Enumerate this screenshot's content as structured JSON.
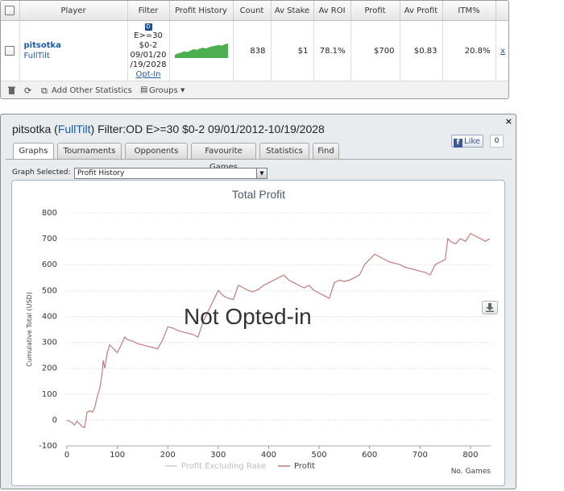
{
  "table": {
    "headers": {
      "player": "Player",
      "filter": "Filter",
      "profit_history": "Profit History",
      "count": "Count",
      "av_stake": "Av Stake",
      "av_roi": "Av ROI",
      "profit": "Profit",
      "av_profit": "Av Profit",
      "itm": "ITM%"
    },
    "row": {
      "player_name": "pitsotka",
      "site": "FullTilt",
      "filter_icon": "D",
      "filter_lines": [
        "E>=30",
        "$0-2",
        "09/01/20",
        "/19/2028"
      ],
      "opt_in": "Opt-In",
      "count": "838",
      "av_stake": "$1",
      "av_roi": "78.1%",
      "profit": "$700",
      "av_profit": "$0.83",
      "itm": "20.8%",
      "remove": "x"
    },
    "toolbar": {
      "add_stats": "Add Other Statistics",
      "groups": "Groups"
    }
  },
  "graph_panel": {
    "close": "×",
    "title_player": "pitsotka (",
    "title_site": "FullTilt",
    "title_rest": ") Filter:OD E>=30 $0-2 09/01/2012-10/19/2028",
    "facebook": {
      "like": "Like",
      "count": "0"
    },
    "tabs": [
      "Graphs",
      "Tournaments",
      "Opponents",
      "Favourite Games",
      "Statistics",
      "Find"
    ],
    "graph_selected_label": "Graph Selected:",
    "graph_selected_value": "Profit History",
    "overlay_text": "Not Opted-in"
  },
  "colors": {
    "profit_line": "#c47a7a",
    "rake_line": "#cccccc",
    "sparkline": "#4caf50",
    "link": "#1a5aa8"
  },
  "chart_data": {
    "type": "line",
    "title": "Total Profit",
    "xlabel": "No. Games",
    "ylabel": "Cumulative Total (USD)",
    "xlim": [
      0,
      840
    ],
    "ylim": [
      -100,
      800
    ],
    "x_ticks": [
      0,
      100,
      200,
      300,
      400,
      500,
      600,
      700,
      800
    ],
    "y_ticks": [
      -100,
      0,
      100,
      200,
      300,
      400,
      500,
      600,
      700,
      800
    ],
    "legend": [
      "Profit Excluding Rake",
      "Profit"
    ],
    "series": [
      {
        "name": "Profit Excluding Rake",
        "points": []
      },
      {
        "name": "Profit",
        "points": [
          [
            0,
            0
          ],
          [
            5,
            -5
          ],
          [
            10,
            -10
          ],
          [
            15,
            -20
          ],
          [
            20,
            -5
          ],
          [
            25,
            -15
          ],
          [
            30,
            -25
          ],
          [
            35,
            -30
          ],
          [
            40,
            30
          ],
          [
            45,
            35
          ],
          [
            50,
            30
          ],
          [
            55,
            45
          ],
          [
            60,
            90
          ],
          [
            65,
            120
          ],
          [
            70,
            180
          ],
          [
            72,
            230
          ],
          [
            75,
            200
          ],
          [
            80,
            260
          ],
          [
            85,
            290
          ],
          [
            90,
            280
          ],
          [
            95,
            270
          ],
          [
            100,
            260
          ],
          [
            105,
            280
          ],
          [
            110,
            300
          ],
          [
            115,
            320
          ],
          [
            120,
            310
          ],
          [
            130,
            305
          ],
          [
            140,
            295
          ],
          [
            150,
            290
          ],
          [
            160,
            285
          ],
          [
            170,
            280
          ],
          [
            180,
            275
          ],
          [
            190,
            310
          ],
          [
            200,
            360
          ],
          [
            210,
            355
          ],
          [
            220,
            345
          ],
          [
            230,
            340
          ],
          [
            240,
            335
          ],
          [
            250,
            330
          ],
          [
            260,
            320
          ],
          [
            270,
            380
          ],
          [
            280,
            420
          ],
          [
            290,
            460
          ],
          [
            300,
            500
          ],
          [
            310,
            480
          ],
          [
            320,
            470
          ],
          [
            330,
            465
          ],
          [
            340,
            520
          ],
          [
            350,
            510
          ],
          [
            360,
            500
          ],
          [
            370,
            495
          ],
          [
            380,
            505
          ],
          [
            390,
            520
          ],
          [
            400,
            530
          ],
          [
            410,
            540
          ],
          [
            420,
            550
          ],
          [
            430,
            560
          ],
          [
            440,
            540
          ],
          [
            450,
            530
          ],
          [
            460,
            520
          ],
          [
            470,
            510
          ],
          [
            480,
            520
          ],
          [
            490,
            500
          ],
          [
            500,
            490
          ],
          [
            510,
            480
          ],
          [
            520,
            470
          ],
          [
            530,
            530
          ],
          [
            540,
            540
          ],
          [
            550,
            535
          ],
          [
            560,
            540
          ],
          [
            570,
            550
          ],
          [
            580,
            560
          ],
          [
            590,
            600
          ],
          [
            600,
            620
          ],
          [
            610,
            640
          ],
          [
            620,
            630
          ],
          [
            630,
            620
          ],
          [
            640,
            610
          ],
          [
            650,
            605
          ],
          [
            660,
            600
          ],
          [
            670,
            590
          ],
          [
            680,
            585
          ],
          [
            690,
            580
          ],
          [
            700,
            575
          ],
          [
            710,
            570
          ],
          [
            720,
            560
          ],
          [
            730,
            600
          ],
          [
            740,
            610
          ],
          [
            750,
            620
          ],
          [
            755,
            700
          ],
          [
            760,
            690
          ],
          [
            770,
            680
          ],
          [
            780,
            700
          ],
          [
            790,
            690
          ],
          [
            800,
            720
          ],
          [
            810,
            710
          ],
          [
            820,
            700
          ],
          [
            830,
            690
          ],
          [
            838,
            700
          ]
        ]
      }
    ]
  },
  "sparkline": [
    0,
    2,
    3,
    5,
    4,
    6,
    8,
    7,
    9,
    10,
    9,
    11,
    12,
    13,
    14,
    13,
    15,
    16
  ]
}
